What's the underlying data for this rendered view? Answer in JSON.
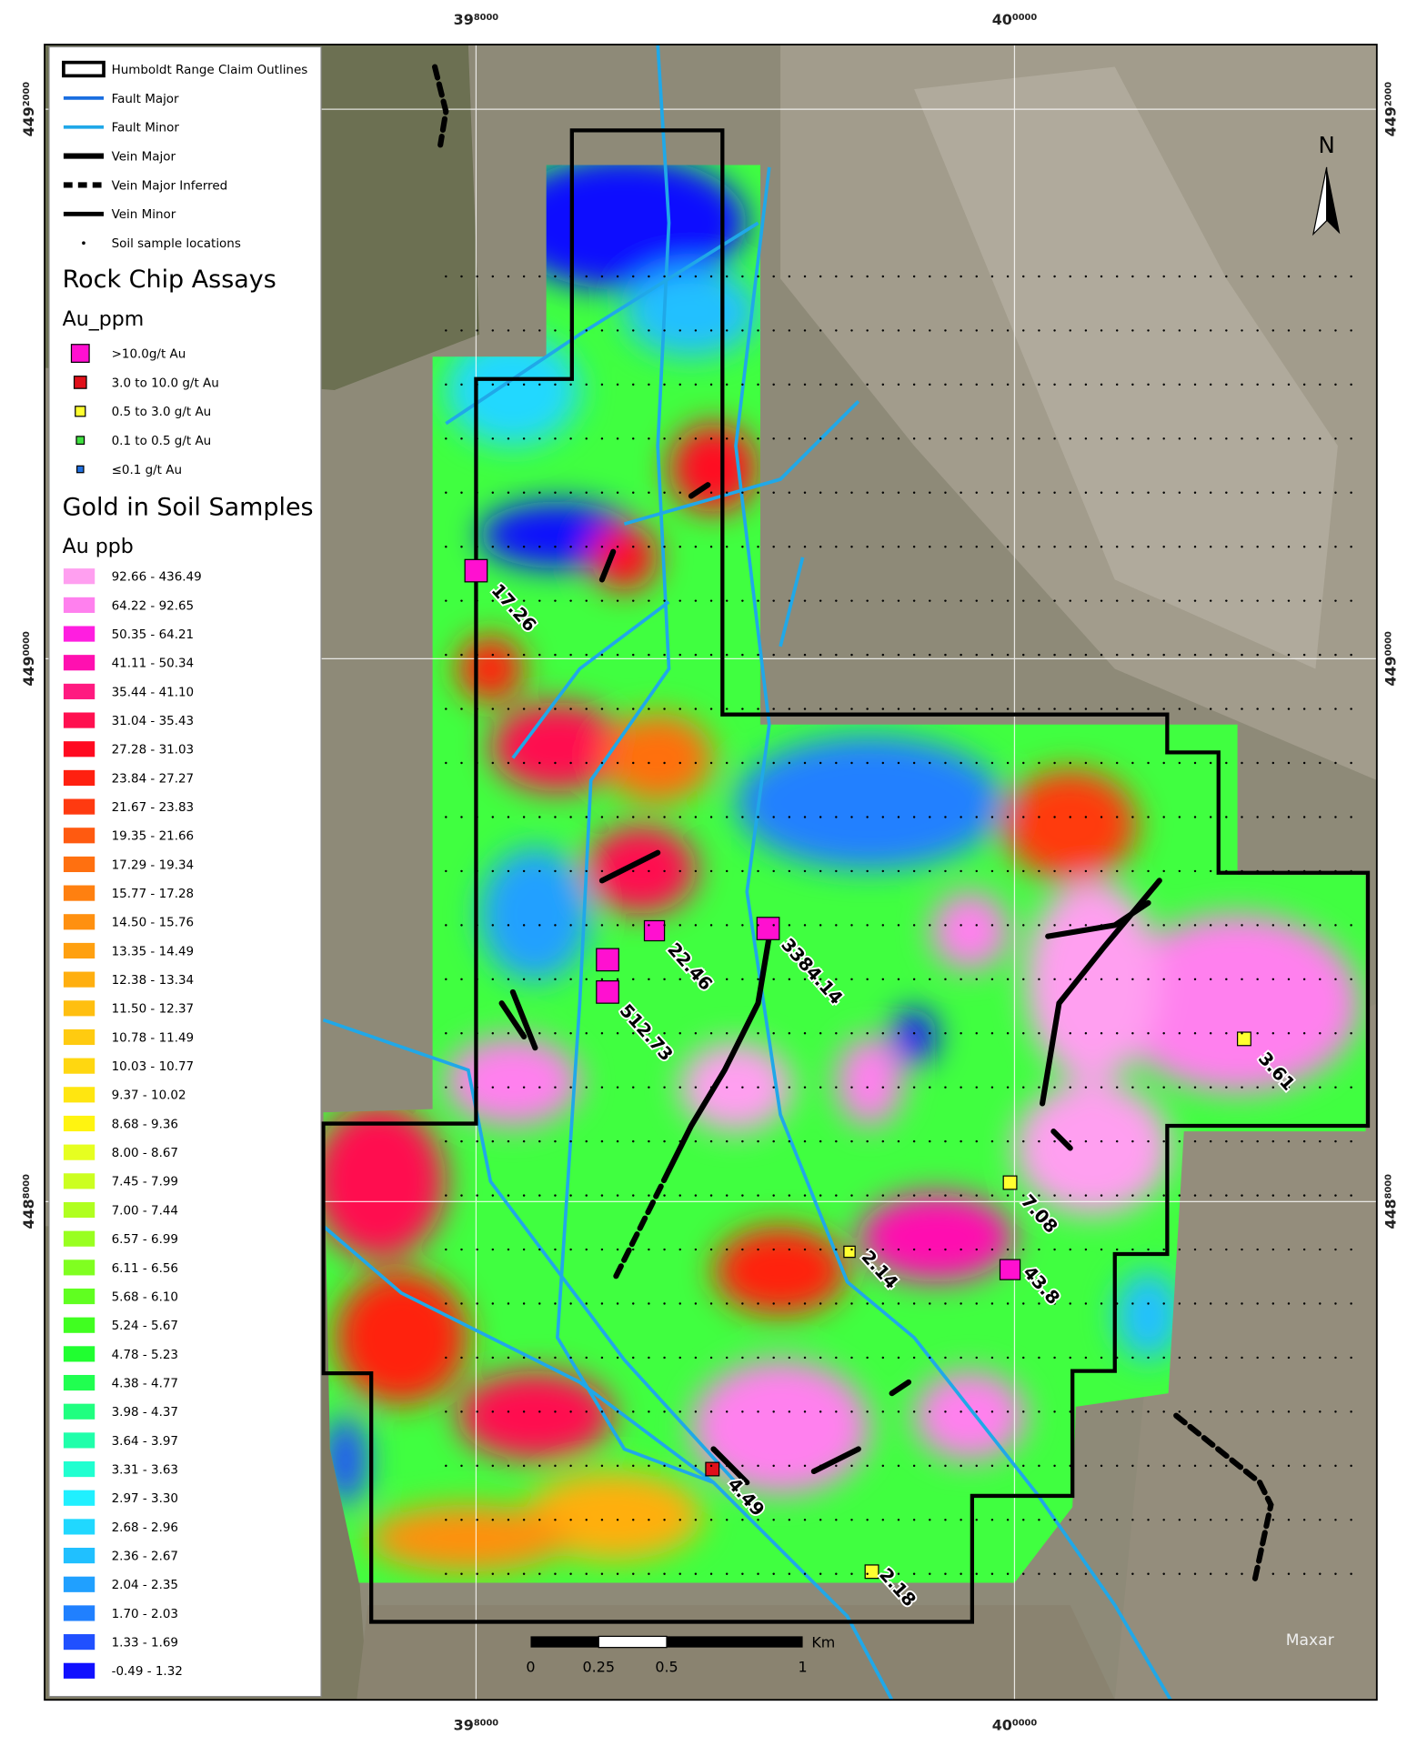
{
  "grid_labels": {
    "top": [
      {
        "major": "39",
        "minor": "8000"
      },
      {
        "major": "40",
        "minor": "0000"
      }
    ],
    "left": [
      {
        "major": "449",
        "minor": "2000"
      },
      {
        "major": "449",
        "minor": "0000"
      },
      {
        "major": "448",
        "minor": "8000"
      }
    ]
  },
  "legend": {
    "lines": [
      "Humboldt Range Claim Outlines",
      "Fault Major",
      "Fault Minor",
      "Vein Major",
      "Vein Major Inferred",
      "Vein Minor",
      "Soil sample locations"
    ],
    "rock_title": "Rock Chip Assays",
    "rock_field": "Au_ppm",
    "rock_classes": [
      {
        "label": ">10.0g/t Au",
        "color": "#ff10d0"
      },
      {
        "label": "3.0 to 10.0 g/t Au",
        "color": "#e0101a"
      },
      {
        "label": "0.5 to 3.0 g/t Au",
        "color": "#ffff30"
      },
      {
        "label": "0.1 to 0.5 g/t Au",
        "color": "#40e040"
      },
      {
        "label": "≤0.1 g/t Au",
        "color": "#2070e0"
      }
    ],
    "soil_title": "Gold in Soil Samples",
    "soil_field": "Au ppb",
    "soil_classes": [
      {
        "label": "92.66 - 436.49",
        "color": "#ff9ff0"
      },
      {
        "label": "64.22 - 92.65",
        "color": "#ff80ee"
      },
      {
        "label": "50.35 - 64.21",
        "color": "#ff1ee0"
      },
      {
        "label": "41.11 - 50.34",
        "color": "#ff10b0"
      },
      {
        "label": "35.44 - 41.10",
        "color": "#ff1a80"
      },
      {
        "label": "31.04 - 35.43",
        "color": "#ff1050"
      },
      {
        "label": "27.28 - 31.03",
        "color": "#ff0a20"
      },
      {
        "label": "23.84 - 27.27",
        "color": "#ff2010"
      },
      {
        "label": "21.67 - 23.83",
        "color": "#ff3a10"
      },
      {
        "label": "19.35 - 21.66",
        "color": "#ff5a10"
      },
      {
        "label": "17.29 - 19.34",
        "color": "#ff7010"
      },
      {
        "label": "15.77 - 17.28",
        "color": "#ff8010"
      },
      {
        "label": "14.50 - 15.76",
        "color": "#ff9010"
      },
      {
        "label": "13.35 - 14.49",
        "color": "#ffa010"
      },
      {
        "label": "12.38 - 13.34",
        "color": "#ffaf10"
      },
      {
        "label": "11.50 - 12.37",
        "color": "#ffbf10"
      },
      {
        "label": "10.78 - 11.49",
        "color": "#ffcb10"
      },
      {
        "label": "10.03 - 10.77",
        "color": "#ffd710"
      },
      {
        "label": "9.37 - 10.02",
        "color": "#ffe610"
      },
      {
        "label": "8.68 - 9.36",
        "color": "#fff410"
      },
      {
        "label": "8.00 - 8.67",
        "color": "#e6ff20"
      },
      {
        "label": "7.45 - 7.99",
        "color": "#ccff20"
      },
      {
        "label": "7.00 - 7.44",
        "color": "#b0ff20"
      },
      {
        "label": "6.57 - 6.99",
        "color": "#99ff20"
      },
      {
        "label": "6.11 - 6.56",
        "color": "#80ff20"
      },
      {
        "label": "5.68 - 6.10",
        "color": "#60ff20"
      },
      {
        "label": "5.24 - 5.67",
        "color": "#40ff20"
      },
      {
        "label": "4.78 - 5.23",
        "color": "#20ff30"
      },
      {
        "label": "4.38 - 4.77",
        "color": "#20ff50"
      },
      {
        "label": "3.98 - 4.37",
        "color": "#20ff80"
      },
      {
        "label": "3.64 - 3.97",
        "color": "#20ffaa"
      },
      {
        "label": "3.31 - 3.63",
        "color": "#20ffd0"
      },
      {
        "label": "2.97 - 3.30",
        "color": "#20f0ff"
      },
      {
        "label": "2.68 - 2.96",
        "color": "#20d8ff"
      },
      {
        "label": "2.36 - 2.67",
        "color": "#20c0ff"
      },
      {
        "label": "2.04 - 2.35",
        "color": "#20a0ff"
      },
      {
        "label": "1.70 - 2.03",
        "color": "#2080ff"
      },
      {
        "label": "1.33 - 1.69",
        "color": "#2050ff"
      },
      {
        "label": "-0.49 - 1.32",
        "color": "#1010ff"
      }
    ]
  },
  "assays": [
    "17.26",
    "22.46",
    "512.73",
    "3384.14",
    "3.61",
    "7.08",
    "2.14",
    "43.8",
    "4.49",
    "2.18"
  ],
  "scale_bar": {
    "unit": "Km",
    "ticks": [
      "0",
      "0.25",
      "0.5",
      "1"
    ]
  },
  "north": "N",
  "credit": "Maxar"
}
